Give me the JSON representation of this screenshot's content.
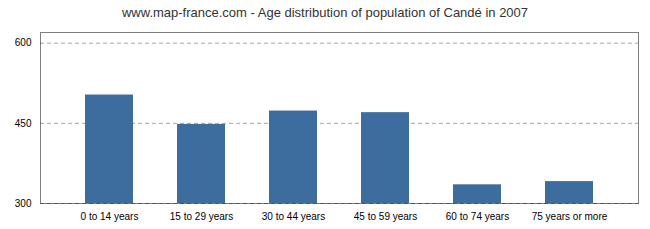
{
  "chart_data": {
    "type": "bar",
    "title": "www.map-france.com - Age distribution of population of Candé in 2007",
    "categories": [
      "0 to 14 years",
      "15 to 29 years",
      "30 to 44 years",
      "45 to 59 years",
      "60 to 74 years",
      "75 years or more"
    ],
    "values": [
      503,
      448,
      473,
      470,
      335,
      341
    ],
    "color": "#3d6d9e",
    "ylim": [
      300,
      620
    ],
    "yticks": [
      300,
      450,
      600
    ],
    "grid": true
  }
}
